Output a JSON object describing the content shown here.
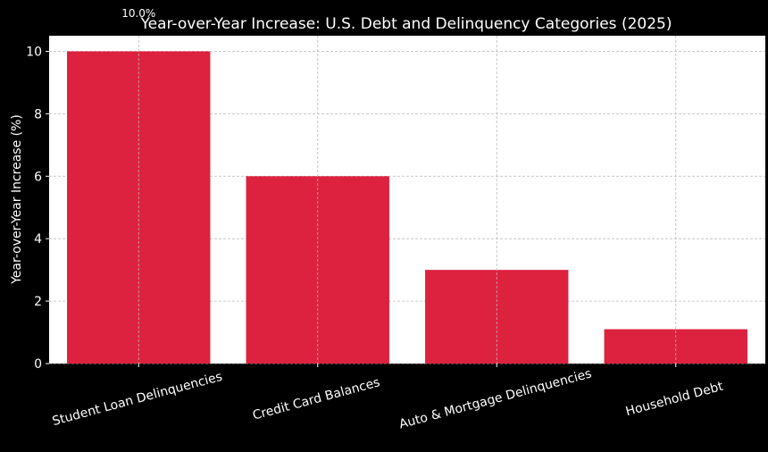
{
  "chart_data": {
    "type": "bar",
    "title": "Year-over-Year Increase: U.S. Debt and Delinquency Categories (2025)",
    "xlabel": "",
    "ylabel": "Year-over-Year Increase (%)",
    "categories": [
      "Student Loan Delinquencies",
      "Credit Card Balances",
      "Auto & Mortgage Delinquencies",
      "Household Debt"
    ],
    "values": [
      10.0,
      6.0,
      3.0,
      1.1
    ],
    "ylim": [
      0,
      10.5
    ],
    "yticks": [
      "0",
      "2",
      "4",
      "6",
      "8",
      "10"
    ],
    "data_labels": [
      "10.0%"
    ],
    "grid": true,
    "colors": {
      "bar": "#dc223e",
      "plot_background": "#ffffff",
      "figure_background": "#000000",
      "text": "#ffffff",
      "grid": "#b8b8b8"
    }
  }
}
